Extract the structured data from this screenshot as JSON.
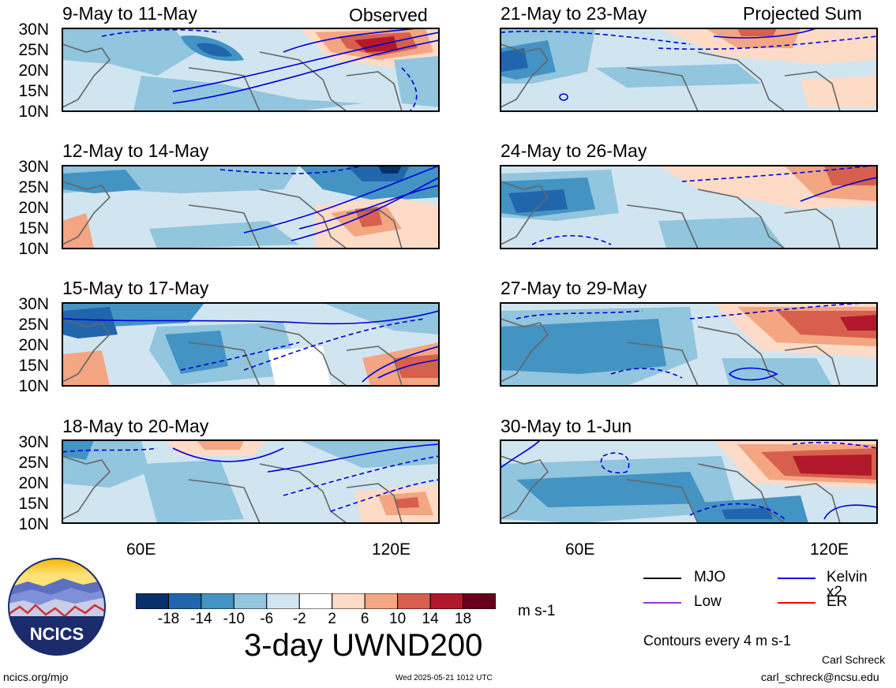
{
  "header": {
    "left_label": "Observed",
    "right_label": "Projected Sum"
  },
  "panels_left": [
    {
      "title": "9-May to 11-May"
    },
    {
      "title": "12-May to 14-May"
    },
    {
      "title": "15-May to 17-May"
    },
    {
      "title": "18-May to 20-May"
    }
  ],
  "panels_right": [
    {
      "title": "21-May to 23-May"
    },
    {
      "title": "24-May to 26-May"
    },
    {
      "title": "27-May to 29-May"
    },
    {
      "title": "30-May to 1-Jun"
    }
  ],
  "lat_labels": [
    "30N",
    "25N",
    "20N",
    "15N",
    "10N"
  ],
  "lon_labels": [
    "60E",
    "120E"
  ],
  "colorbar": {
    "colors": [
      "#08306b",
      "#2166ac",
      "#4393c3",
      "#92c5de",
      "#d1e5f0",
      "#ffffff",
      "#fddbc7",
      "#f4a582",
      "#d6604d",
      "#b2182b",
      "#67001f"
    ],
    "ticks": [
      "-18",
      "-14",
      "-10",
      "-6",
      "-2",
      "2",
      "6",
      "10",
      "14",
      "18"
    ],
    "units": "m s-1"
  },
  "main_title": "3-day UWND200",
  "logo": {
    "text": "NCICS"
  },
  "legend": {
    "items": [
      {
        "label": "MJO",
        "color": "#000000"
      },
      {
        "label": "Kelvin x2",
        "color": "#0000ff"
      },
      {
        "label": "Low",
        "color": "#9933cc"
      },
      {
        "label": "ER",
        "color": "#ff0000"
      }
    ],
    "contours_note": "Contours every 4 m s-1"
  },
  "footer": {
    "url": "ncics.org/mjo",
    "timestamp": "Wed 2025-05-21 1012 UTC",
    "author": "Carl Schreck",
    "email": "carl_schreck@ncsu.edu"
  }
}
